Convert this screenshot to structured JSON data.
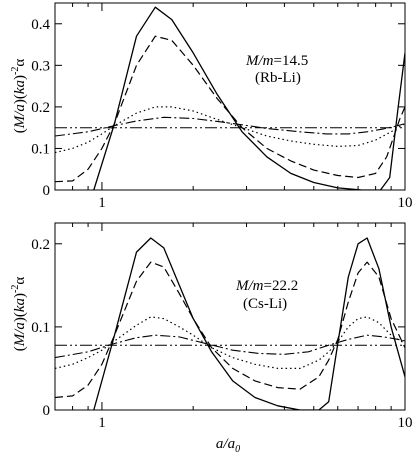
{
  "chart_data": [
    {
      "type": "line",
      "xscale": "log",
      "xlim": [
        0.7,
        10
      ],
      "ylim": [
        0,
        0.45
      ],
      "xticks": [
        1,
        10
      ],
      "xtick_labels": [
        "1",
        "10"
      ],
      "yticks": [
        0,
        0.1,
        0.2,
        0.3,
        0.4
      ],
      "ytick_labels": [
        "0",
        "0.1",
        "0.2",
        "0.3",
        "0.4"
      ],
      "ylabel": "(M/a)(ka)⁻²α",
      "ylabel_parts": {
        "a": "(",
        "b": "M/a",
        "c": ")(",
        "d": "ka",
        "e": ")",
        "f": "-2",
        "g": "α"
      },
      "annotation": {
        "mass_ratio": "M/m",
        "value": "=14.5",
        "pair": "(Rb-Li)"
      },
      "series": [
        {
          "style": "solid",
          "x": [
            0.94,
            1.1,
            1.3,
            1.5,
            1.7,
            2.0,
            2.4,
            2.9,
            3.5,
            4.2,
            5.0,
            6.0,
            7.2,
            8.3,
            8.9,
            9.5,
            10.0
          ],
          "y": [
            0.0,
            0.16,
            0.37,
            0.44,
            0.41,
            0.33,
            0.23,
            0.14,
            0.08,
            0.04,
            0.018,
            0.005,
            0.0,
            0.0,
            0.03,
            0.2,
            0.33
          ]
        },
        {
          "style": "dashed",
          "x": [
            0.7,
            0.8,
            0.9,
            1.0,
            1.1,
            1.3,
            1.5,
            1.7,
            2.0,
            2.4,
            2.9,
            3.5,
            4.2,
            5.0,
            6.0,
            7.0,
            8.0,
            8.7,
            9.2,
            9.6,
            10.0
          ],
          "y": [
            0.02,
            0.022,
            0.05,
            0.1,
            0.16,
            0.3,
            0.37,
            0.36,
            0.3,
            0.22,
            0.15,
            0.1,
            0.07,
            0.048,
            0.035,
            0.03,
            0.04,
            0.08,
            0.13,
            0.17,
            0.2
          ]
        },
        {
          "style": "dotted",
          "x": [
            0.7,
            0.8,
            0.9,
            1.0,
            1.1,
            1.3,
            1.5,
            1.7,
            2.0,
            2.4,
            2.9,
            3.5,
            4.2,
            5.0,
            6.0,
            7.0,
            8.0,
            9.0,
            10.0
          ],
          "y": [
            0.09,
            0.1,
            0.115,
            0.135,
            0.155,
            0.185,
            0.2,
            0.2,
            0.19,
            0.17,
            0.15,
            0.13,
            0.118,
            0.11,
            0.105,
            0.107,
            0.12,
            0.14,
            0.16
          ]
        },
        {
          "style": "dashdot",
          "x": [
            0.7,
            0.9,
            1.1,
            1.3,
            1.6,
            2.0,
            2.4,
            2.9,
            3.5,
            4.5,
            5.5,
            6.5,
            7.5,
            8.5,
            9.5,
            10.0
          ],
          "y": [
            0.13,
            0.14,
            0.155,
            0.166,
            0.175,
            0.172,
            0.165,
            0.157,
            0.148,
            0.14,
            0.135,
            0.135,
            0.14,
            0.147,
            0.155,
            0.16
          ]
        },
        {
          "style": "dashdotdot",
          "x": [
            0.7,
            10.0
          ],
          "y": [
            0.15,
            0.15
          ]
        }
      ]
    },
    {
      "type": "line",
      "xscale": "log",
      "xlim": [
        0.7,
        10
      ],
      "ylim": [
        0,
        0.225
      ],
      "xticks": [
        1,
        10
      ],
      "xtick_labels": [
        "1",
        "10"
      ],
      "yticks": [
        0,
        0.1,
        0.2
      ],
      "ytick_labels": [
        "0",
        "0.1",
        "0.2"
      ],
      "ylabel": "(M/a)(ka)⁻²α",
      "ylabel_parts": {
        "a": "(",
        "b": "M/a",
        "c": ")(",
        "d": "ka",
        "e": ")",
        "f": "-2",
        "g": "α"
      },
      "xlabel": "a/a₀",
      "xlabel_parts": {
        "a": "a/a",
        "b": "0"
      },
      "annotation": {
        "mass_ratio": "M/m",
        "value": "=22.2",
        "pair": "(Cs-Li)"
      },
      "series": [
        {
          "style": "solid",
          "x": [
            0.94,
            1.1,
            1.3,
            1.45,
            1.6,
            1.8,
            2.0,
            2.3,
            2.7,
            3.2,
            3.8,
            4.5,
            5.2,
            5.6,
            6.0,
            6.5,
            7.0,
            7.5,
            8.2,
            9.0,
            10.0
          ],
          "y": [
            0.0,
            0.09,
            0.19,
            0.207,
            0.195,
            0.15,
            0.11,
            0.07,
            0.035,
            0.015,
            0.005,
            0.0,
            0.0,
            0.01,
            0.08,
            0.16,
            0.2,
            0.207,
            0.17,
            0.1,
            0.04
          ]
        },
        {
          "style": "dashed",
          "x": [
            0.7,
            0.8,
            0.9,
            1.0,
            1.1,
            1.3,
            1.45,
            1.6,
            1.8,
            2.0,
            2.3,
            2.7,
            3.2,
            3.8,
            4.5,
            5.2,
            5.6,
            6.0,
            6.5,
            7.0,
            7.5,
            8.2,
            9.0,
            10.0
          ],
          "y": [
            0.015,
            0.017,
            0.03,
            0.055,
            0.09,
            0.155,
            0.178,
            0.172,
            0.14,
            0.11,
            0.075,
            0.05,
            0.035,
            0.027,
            0.025,
            0.04,
            0.06,
            0.085,
            0.13,
            0.165,
            0.178,
            0.16,
            0.11,
            0.075
          ]
        },
        {
          "style": "dotted",
          "x": [
            0.7,
            0.8,
            0.9,
            1.0,
            1.1,
            1.3,
            1.45,
            1.6,
            1.8,
            2.0,
            2.3,
            2.7,
            3.2,
            3.8,
            4.5,
            5.2,
            5.6,
            6.0,
            6.5,
            7.0,
            7.5,
            8.2,
            9.0,
            10.0
          ],
          "y": [
            0.05,
            0.055,
            0.063,
            0.072,
            0.083,
            0.102,
            0.112,
            0.11,
            0.1,
            0.09,
            0.075,
            0.063,
            0.055,
            0.05,
            0.05,
            0.06,
            0.07,
            0.082,
            0.1,
            0.11,
            0.112,
            0.105,
            0.09,
            0.08
          ]
        },
        {
          "style": "dashdot",
          "x": [
            0.7,
            0.9,
            1.1,
            1.3,
            1.5,
            1.8,
            2.2,
            2.7,
            3.3,
            4.0,
            4.8,
            5.6,
            6.5,
            7.5,
            8.5,
            9.5,
            10.0
          ],
          "y": [
            0.063,
            0.07,
            0.08,
            0.087,
            0.09,
            0.088,
            0.08,
            0.072,
            0.068,
            0.067,
            0.07,
            0.078,
            0.085,
            0.09,
            0.088,
            0.085,
            0.083
          ]
        },
        {
          "style": "dashdotdot",
          "x": [
            0.7,
            10.0
          ],
          "y": [
            0.078,
            0.078
          ]
        }
      ]
    }
  ]
}
